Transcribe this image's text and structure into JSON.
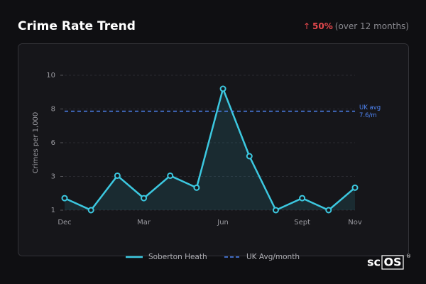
{
  "header": {
    "arrow": "↑",
    "change": "50%",
    "period": "(over 12 months)"
  },
  "logo": {
    "left": "sc",
    "boxed": "OS",
    "mark": "®"
  },
  "chart_data": {
    "type": "line",
    "title": "Crime Rate Trend",
    "y_label": "Crimes per 1,000",
    "categories": [
      "Dec",
      null,
      null,
      "Mar",
      null,
      null,
      "Jun",
      null,
      null,
      "Sept",
      null,
      "Nov"
    ],
    "series": [
      {
        "name": "Soberton Heath",
        "color": "#3cc8e0",
        "values": [
          1.8,
          1.0,
          3.3,
          1.8,
          3.3,
          2.5,
          9.1,
          4.6,
          1.0,
          1.8,
          1.0,
          2.5
        ]
      }
    ],
    "reference_line": {
      "name": "UK Avg/month",
      "value": 7.6,
      "color": "#4f86f7",
      "label": [
        "UK avg",
        "7.6/m"
      ]
    },
    "ylim": [
      1,
      10
    ],
    "yticks": [
      1,
      {
        "value": 3.25,
        "label": "3"
      },
      {
        "value": 5.5,
        "label": "6"
      },
      {
        "value": 7.75,
        "label": "8"
      },
      10
    ],
    "grid": true
  }
}
